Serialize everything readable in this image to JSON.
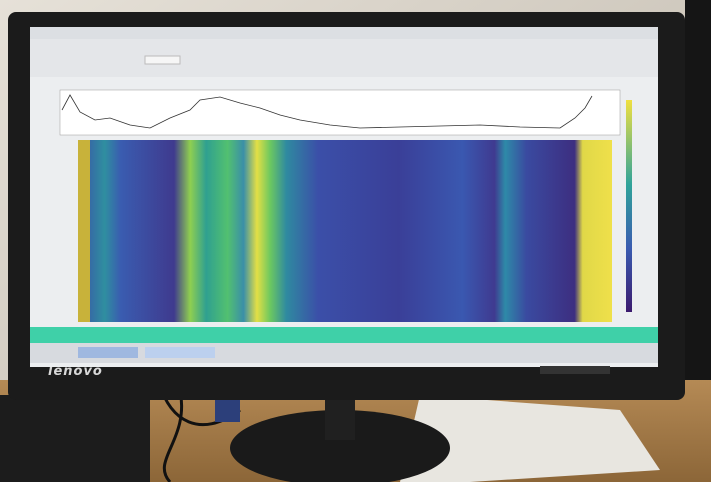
{
  "monitor": {
    "brand": "lenovo"
  }
}
